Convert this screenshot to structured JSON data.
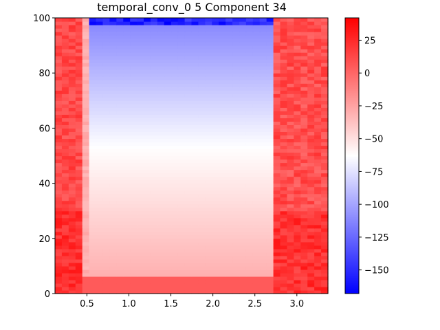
{
  "chart_data": {
    "type": "heatmap",
    "title": "temporal_conv_0 5 Component 34",
    "xlabel": "",
    "ylabel": "",
    "xlim": [
      0.12,
      3.37
    ],
    "ylim": [
      0,
      100
    ],
    "x_ticks": [
      {
        "value": 0.5,
        "label": "0.5"
      },
      {
        "value": 1.0,
        "label": "1.0"
      },
      {
        "value": 1.5,
        "label": "1.5"
      },
      {
        "value": 2.0,
        "label": "2.0"
      },
      {
        "value": 2.5,
        "label": "2.5"
      },
      {
        "value": 3.0,
        "label": "3.0"
      }
    ],
    "y_ticks": [
      {
        "value": 0,
        "label": "0"
      },
      {
        "value": 20,
        "label": "20"
      },
      {
        "value": 40,
        "label": "40"
      },
      {
        "value": 60,
        "label": "60"
      },
      {
        "value": 80,
        "label": "80"
      },
      {
        "value": 100,
        "label": "100"
      }
    ],
    "colormap": "bwr",
    "colorbar": {
      "min": -168,
      "max": 42,
      "ticks": [
        {
          "value": 25,
          "label": "25"
        },
        {
          "value": 0,
          "label": "0"
        },
        {
          "value": -25,
          "label": "−25"
        },
        {
          "value": -50,
          "label": "−50"
        },
        {
          "value": -75,
          "label": "−75"
        },
        {
          "value": -100,
          "label": "−100"
        },
        {
          "value": -125,
          "label": "−125"
        },
        {
          "value": -150,
          "label": "−150"
        }
      ]
    },
    "regions": {
      "left_band": {
        "x_range": [
          0.12,
          0.47
        ],
        "value_range": [
          -10,
          35
        ]
      },
      "left_edge": {
        "x_range": [
          0.47,
          0.54
        ],
        "value_range": [
          -35,
          -25
        ]
      },
      "right_band": {
        "x_range": [
          2.72,
          3.37
        ],
        "value_range": [
          -15,
          35
        ]
      },
      "bottom_band": {
        "y_range": [
          0,
          6
        ],
        "value": 5
      },
      "center": {
        "x_range": [
          0.54,
          2.72
        ],
        "y_range": [
          6,
          98
        ],
        "value_at_bottom": -30,
        "value_at_mid": -62,
        "value_at_top": -112
      },
      "top_strip": {
        "y_range": [
          98,
          100
        ],
        "value_range": [
          -168,
          -140
        ]
      }
    },
    "grid": false
  }
}
